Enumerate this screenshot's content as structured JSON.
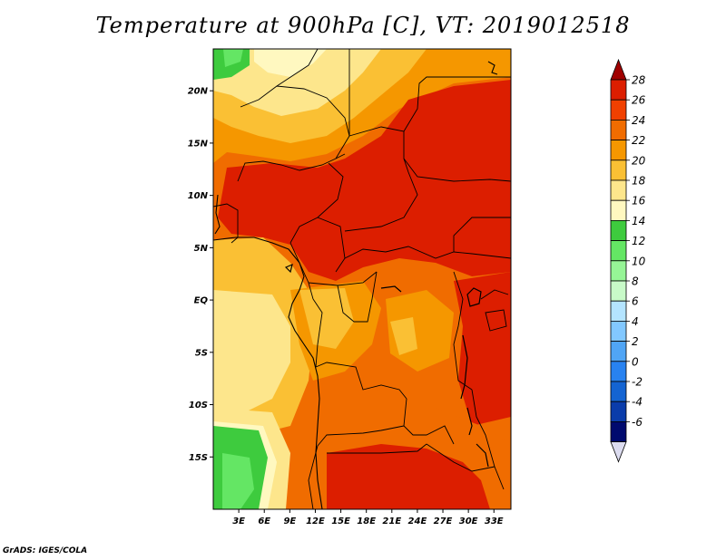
{
  "title": "Temperature at 900hPa [C], VT: 2019012518",
  "credit": "GrADS: IGES/COLA",
  "map": {
    "variable": "Temperature at 900hPa",
    "units": "C",
    "valid_time": "2019012518",
    "lat_labels": [
      "20N",
      "15N",
      "10N",
      "5N",
      "EQ",
      "5S",
      "10S",
      "15S"
    ],
    "lon_labels": [
      "3E",
      "6E",
      "9E",
      "12E",
      "15E",
      "18E",
      "21E",
      "24E",
      "27E",
      "30E",
      "33E"
    ],
    "lon_range": [
      0,
      35
    ],
    "lat_range": [
      -20,
      24
    ]
  },
  "colorbar": {
    "labels": [
      "28",
      "26",
      "24",
      "22",
      "20",
      "18",
      "16",
      "14",
      "12",
      "10",
      "8",
      "6",
      "4",
      "2",
      "0",
      "-2",
      "-4",
      "-6"
    ],
    "colors": [
      "#a00000",
      "#dc1e00",
      "#f04000",
      "#f06c00",
      "#f59700",
      "#fac034",
      "#fde68c",
      "#fff8c0",
      "#3ecb3e",
      "#64e664",
      "#96f596",
      "#c8fac8",
      "#b4e4ff",
      "#82c8ff",
      "#50a5f5",
      "#2882f0",
      "#1464d2",
      "#0a3caa",
      "#000a6e",
      "#dcdcf0"
    ]
  }
}
